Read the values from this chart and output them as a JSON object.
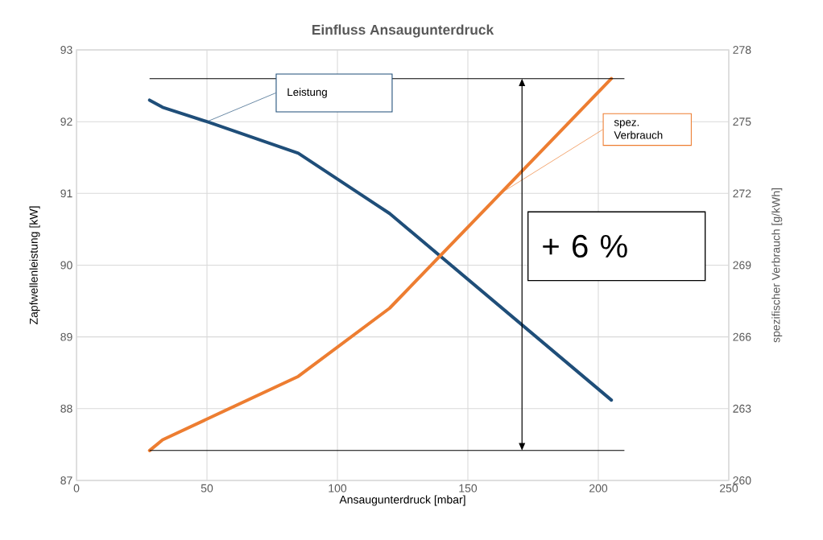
{
  "chart_data": {
    "type": "line",
    "title": "Einfluss Ansaugunterdruck",
    "xlabel": "Ansaugunterdruck [mbar]",
    "ylabel": "Zapfwellenleistung [kW]",
    "y2label": "spezifischer Verbrauch [g/kWh]",
    "xlim": [
      0,
      250
    ],
    "xticks": [
      0,
      50,
      100,
      150,
      200,
      250
    ],
    "ylim": [
      87,
      93
    ],
    "yticks": [
      87,
      88,
      89,
      90,
      91,
      92,
      93
    ],
    "y2lim": [
      260,
      278
    ],
    "y2ticks": [
      260,
      263,
      266,
      269,
      272,
      275,
      278
    ],
    "grid": true,
    "series": [
      {
        "name": "Leistung",
        "color": "#1f4e79",
        "x": [
          28,
          33,
          50,
          85,
          120,
          205
        ],
        "values": [
          92.3,
          92.2,
          92.0,
          91.56,
          90.72,
          88.12
        ]
      },
      {
        "name": "spez. Verbrauch",
        "color": "#ed7d31",
        "axis": "y2",
        "x": [
          28,
          33,
          85,
          120,
          205
        ],
        "values": [
          261.25,
          261.7,
          264.35,
          267.2,
          276.8
        ]
      }
    ],
    "ref_lines": [
      {
        "axis": "y2",
        "value": 261.25
      },
      {
        "axis": "y2",
        "value": 276.8
      }
    ],
    "annotations": [
      "+ 6 %"
    ]
  }
}
